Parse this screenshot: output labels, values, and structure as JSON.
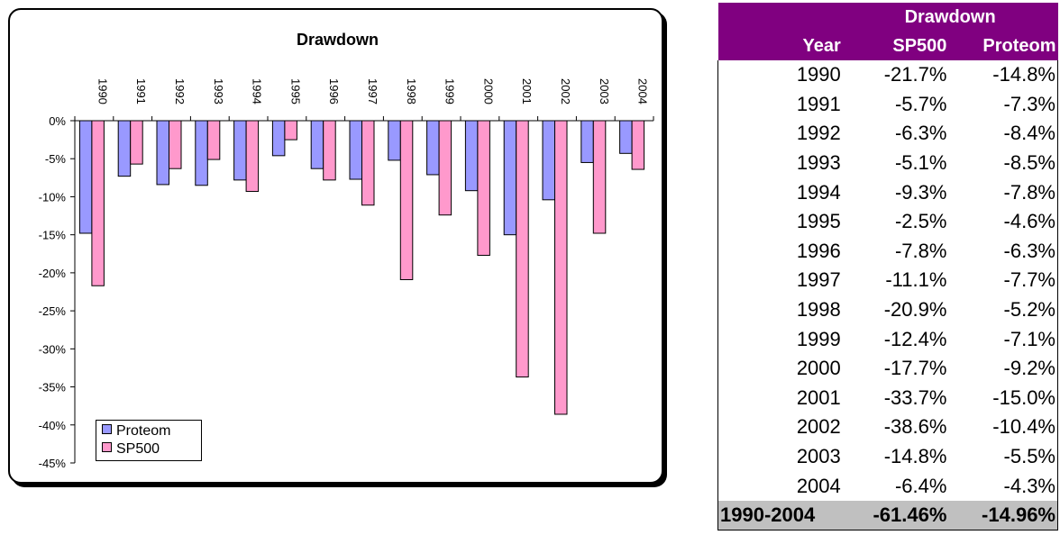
{
  "chart_data": {
    "type": "bar",
    "title": "Drawdown",
    "categories": [
      "1990",
      "1991",
      "1992",
      "1993",
      "1994",
      "1995",
      "1996",
      "1997",
      "1998",
      "1999",
      "2000",
      "2001",
      "2002",
      "2003",
      "2004"
    ],
    "series": [
      {
        "name": "Proteom",
        "color": "#9999ff",
        "values": [
          -14.8,
          -7.3,
          -8.4,
          -8.5,
          -7.8,
          -4.6,
          -6.3,
          -7.7,
          -5.2,
          -7.1,
          -9.2,
          -15.0,
          -10.4,
          -5.5,
          -4.3
        ]
      },
      {
        "name": "SP500",
        "color": "#ff99cc",
        "values": [
          -21.7,
          -5.7,
          -6.3,
          -5.1,
          -9.3,
          -2.5,
          -7.8,
          -11.1,
          -20.9,
          -12.4,
          -17.7,
          -33.7,
          -38.6,
          -14.8,
          -6.4
        ]
      }
    ],
    "ylim": [
      -45,
      0
    ],
    "yticks": [
      "0%",
      "-5%",
      "-10%",
      "-15%",
      "-20%",
      "-25%",
      "-30%",
      "-35%",
      "-40%",
      "-45%"
    ],
    "legend": "bottom-left",
    "grid": false
  },
  "table": {
    "group_header": "Drawdown",
    "headers": [
      "Year",
      "SP500",
      "Proteom"
    ],
    "rows": [
      [
        "1990",
        "-21.7%",
        "-14.8%"
      ],
      [
        "1991",
        "-5.7%",
        "-7.3%"
      ],
      [
        "1992",
        "-6.3%",
        "-8.4%"
      ],
      [
        "1993",
        "-5.1%",
        "-8.5%"
      ],
      [
        "1994",
        "-9.3%",
        "-7.8%"
      ],
      [
        "1995",
        "-2.5%",
        "-4.6%"
      ],
      [
        "1996",
        "-7.8%",
        "-6.3%"
      ],
      [
        "1997",
        "-11.1%",
        "-7.7%"
      ],
      [
        "1998",
        "-20.9%",
        "-5.2%"
      ],
      [
        "1999",
        "-12.4%",
        "-7.1%"
      ],
      [
        "2000",
        "-17.7%",
        "-9.2%"
      ],
      [
        "2001",
        "-33.7%",
        "-15.0%"
      ],
      [
        "2002",
        "-38.6%",
        "-10.4%"
      ],
      [
        "2003",
        "-14.8%",
        "-5.5%"
      ],
      [
        "2004",
        "-6.4%",
        "-4.3%"
      ]
    ],
    "total": [
      "1990-2004",
      "-61.46%",
      "-14.96%"
    ]
  }
}
